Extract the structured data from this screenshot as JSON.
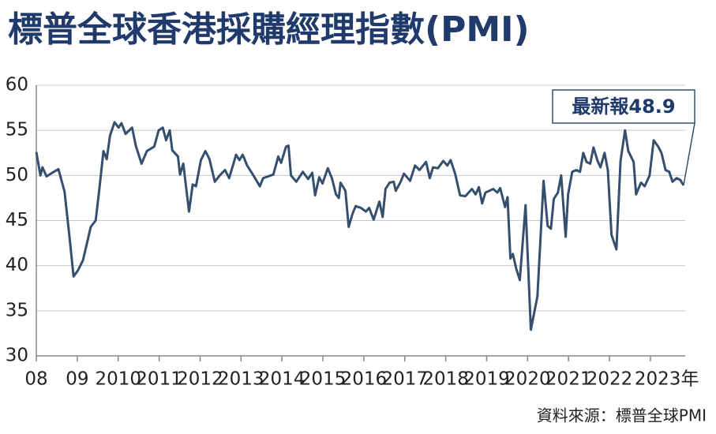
{
  "chart_data": {
    "type": "line",
    "title": "標普全球香港採購經理指數(PMI)",
    "annotation": "最新報48.9",
    "source": "資料來源：標普全球PMI",
    "color": "#34506e",
    "grid": true,
    "xlim": [
      2008,
      2023.85
    ],
    "ylim": [
      30,
      60
    ],
    "yticks": [
      30,
      35,
      40,
      45,
      50,
      55,
      60
    ],
    "xticks": [
      {
        "value": 2008,
        "label": "08"
      },
      {
        "value": 2009,
        "label": "09"
      },
      2010,
      2011,
      2012,
      2013,
      2014,
      2015,
      2016,
      2017,
      2018,
      2019,
      2020,
      2021,
      2022,
      {
        "value": 2023,
        "label": "2023年"
      }
    ],
    "x": [
      2008.0,
      2008.1,
      2008.15,
      2008.25,
      2008.39,
      2008.54,
      2008.69,
      2008.81,
      2008.91,
      2009.02,
      2009.14,
      2009.33,
      2009.45,
      2009.54,
      2009.64,
      2009.72,
      2009.8,
      2009.91,
      2010.01,
      2010.08,
      2010.18,
      2010.34,
      2010.43,
      2010.57,
      2010.7,
      2010.88,
      2010.99,
      2011.09,
      2011.17,
      2011.26,
      2011.32,
      2011.46,
      2011.51,
      2011.59,
      2011.73,
      2011.82,
      2011.9,
      2012.02,
      2012.13,
      2012.23,
      2012.36,
      2012.48,
      2012.61,
      2012.71,
      2012.88,
      2012.96,
      2013.04,
      2013.15,
      2013.29,
      2013.46,
      2013.54,
      2013.79,
      2013.91,
      2013.98,
      2014.1,
      2014.16,
      2014.22,
      2014.35,
      2014.51,
      2014.64,
      2014.74,
      2014.81,
      2014.91,
      2014.99,
      2015.12,
      2015.22,
      2015.32,
      2015.39,
      2015.43,
      2015.55,
      2015.63,
      2015.72,
      2015.8,
      2015.93,
      2016.05,
      2016.13,
      2016.24,
      2016.38,
      2016.46,
      2016.53,
      2016.63,
      2016.73,
      2016.78,
      2016.9,
      2016.98,
      2017.13,
      2017.25,
      2017.36,
      2017.52,
      2017.61,
      2017.69,
      2017.81,
      2017.94,
      2018.04,
      2018.12,
      2018.23,
      2018.35,
      2018.48,
      2018.64,
      2018.73,
      2018.81,
      2018.89,
      2018.97,
      2019.16,
      2019.26,
      2019.33,
      2019.45,
      2019.51,
      2019.58,
      2019.64,
      2019.72,
      2019.81,
      2019.95,
      2020.08,
      2020.24,
      2020.39,
      2020.49,
      2020.57,
      2020.64,
      2020.74,
      2020.82,
      2020.93,
      2020.99,
      2021.09,
      2021.19,
      2021.28,
      2021.36,
      2021.44,
      2021.53,
      2021.61,
      2021.71,
      2021.78,
      2021.88,
      2021.96,
      2022.05,
      2022.17,
      2022.27,
      2022.38,
      2022.46,
      2022.59,
      2022.65,
      2022.77,
      2022.86,
      2022.98,
      2023.08,
      2023.19,
      2023.27,
      2023.37,
      2023.46,
      2023.54,
      2023.64,
      2023.73,
      2023.81
    ],
    "values": [
      52.6,
      50.0,
      50.9,
      49.9,
      50.3,
      50.7,
      48.2,
      43.2,
      38.8,
      39.5,
      40.6,
      44.3,
      45.0,
      48.5,
      52.7,
      51.8,
      54.4,
      55.9,
      55.3,
      55.8,
      54.6,
      55.3,
      53.3,
      51.3,
      52.7,
      53.2,
      55.0,
      55.3,
      53.9,
      55.0,
      52.8,
      52.1,
      50.1,
      51.3,
      46.0,
      49.0,
      48.8,
      51.7,
      52.7,
      51.8,
      49.3,
      50.0,
      50.6,
      49.7,
      52.3,
      51.7,
      52.3,
      51.1,
      50.1,
      48.8,
      49.7,
      50.1,
      52.1,
      51.4,
      53.2,
      53.3,
      50.0,
      49.3,
      50.4,
      49.6,
      50.3,
      47.8,
      49.8,
      49.1,
      50.8,
      49.7,
      47.9,
      47.5,
      49.2,
      48.3,
      44.3,
      45.7,
      46.6,
      46.4,
      46.0,
      46.4,
      45.1,
      47.1,
      45.4,
      48.5,
      49.2,
      49.3,
      48.3,
      49.3,
      50.2,
      49.4,
      51.1,
      50.6,
      51.5,
      49.7,
      50.9,
      50.8,
      51.6,
      51.1,
      51.7,
      50.2,
      47.8,
      47.7,
      48.5,
      47.9,
      48.7,
      46.9,
      48.1,
      48.5,
      48.1,
      48.6,
      46.5,
      47.6,
      40.8,
      41.3,
      39.7,
      38.4,
      46.7,
      32.9,
      36.6,
      49.4,
      44.4,
      44.1,
      47.4,
      48.1,
      50.0,
      43.2,
      47.9,
      50.4,
      50.6,
      50.4,
      52.5,
      51.5,
      51.3,
      53.1,
      51.6,
      50.9,
      52.5,
      50.6,
      43.4,
      41.8,
      51.6,
      55.0,
      52.7,
      51.5,
      47.9,
      49.2,
      48.8,
      50.0,
      53.9,
      53.2,
      52.5,
      50.6,
      50.4,
      49.3,
      49.7,
      49.5,
      48.9
    ]
  }
}
